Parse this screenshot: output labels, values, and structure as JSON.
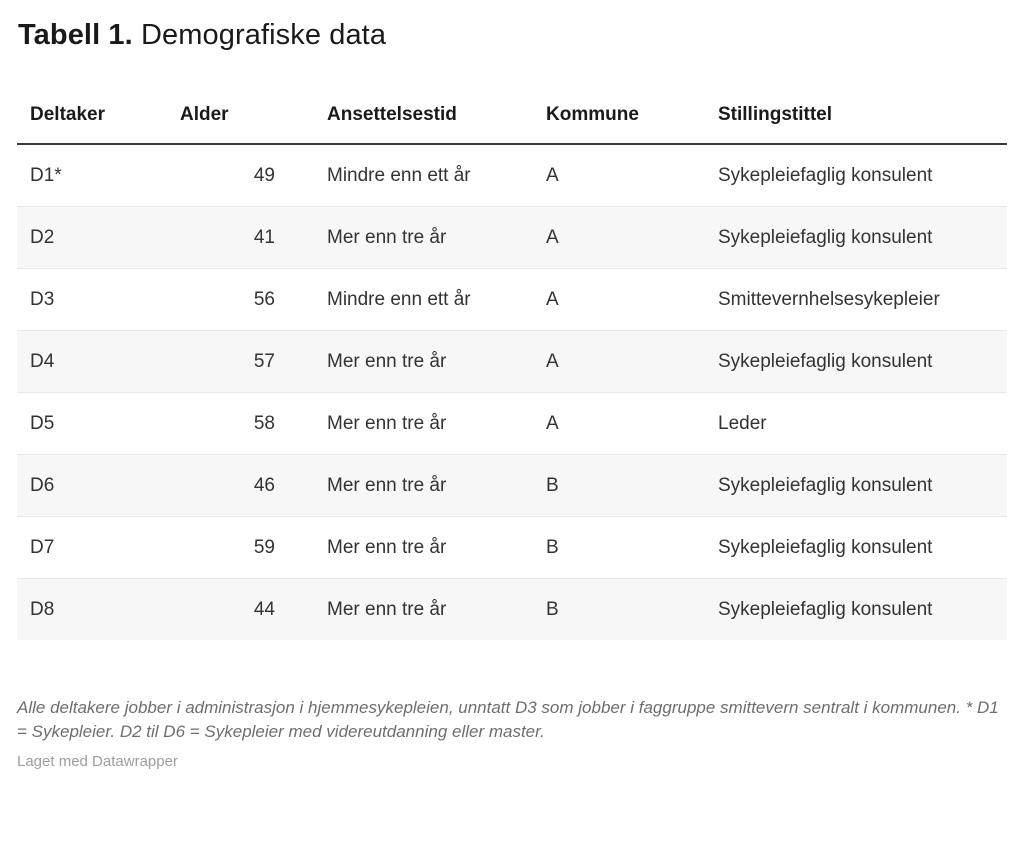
{
  "title": {
    "prefix_bold": "Tabell 1.",
    "rest": "Demografiske data"
  },
  "chart_data": {
    "type": "table",
    "title": "Tabell 1. Demografiske data",
    "columns": [
      {
        "key": "deltaker",
        "label": "Deltaker",
        "align": "left"
      },
      {
        "key": "alder",
        "label": "Alder",
        "align": "right"
      },
      {
        "key": "ansettelsestid",
        "label": "Ansettelsestid",
        "align": "left"
      },
      {
        "key": "kommune",
        "label": "Kommune",
        "align": "left"
      },
      {
        "key": "stillingstittel",
        "label": "Stillingstittel",
        "align": "left"
      }
    ],
    "rows": [
      {
        "deltaker": "D1*",
        "alder": "49",
        "ansettelsestid": "Mindre enn ett år",
        "kommune": "A",
        "stillingstittel": "Sykepleiefaglig konsulent"
      },
      {
        "deltaker": "D2",
        "alder": "41",
        "ansettelsestid": "Mer enn tre år",
        "kommune": "A",
        "stillingstittel": "Sykepleiefaglig konsulent"
      },
      {
        "deltaker": "D3",
        "alder": "56",
        "ansettelsestid": "Mindre enn ett år",
        "kommune": "A",
        "stillingstittel": "Smittevernhelsesykepleier"
      },
      {
        "deltaker": "D4",
        "alder": "57",
        "ansettelsestid": "Mer enn tre år",
        "kommune": "A",
        "stillingstittel": "Sykepleiefaglig konsulent"
      },
      {
        "deltaker": "D5",
        "alder": "58",
        "ansettelsestid": "Mer enn tre år",
        "kommune": "A",
        "stillingstittel": "Leder"
      },
      {
        "deltaker": "D6",
        "alder": "46",
        "ansettelsestid": "Mer enn tre år",
        "kommune": "B",
        "stillingstittel": "Sykepleiefaglig konsulent"
      },
      {
        "deltaker": "D7",
        "alder": "59",
        "ansettelsestid": "Mer enn tre år",
        "kommune": "B",
        "stillingstittel": "Sykepleiefaglig konsulent"
      },
      {
        "deltaker": "D8",
        "alder": "44",
        "ansettelsestid": "Mer enn tre år",
        "kommune": "B",
        "stillingstittel": "Sykepleiefaglig konsulent"
      }
    ]
  },
  "footer": {
    "note": "Alle deltakere jobber i administrasjon i hjemmesykepleien, unntatt D3 som jobber i faggruppe smittevern sentralt i kommunen. * D1 = Sykepleier. D2 til D6 = Sykepleier med videreutdanning eller master.",
    "attribution": "Laget med Datawrapper"
  },
  "colors": {
    "background": "#ffffff",
    "text_primary": "#1a1a1a",
    "text_cell": "#333333",
    "zebra_row": "#f7f7f7",
    "row_border": "#e9e9e9",
    "header_rule": "#393939",
    "footnote_text": "#6e6e6e",
    "attribution_text": "#9d9d9d"
  }
}
